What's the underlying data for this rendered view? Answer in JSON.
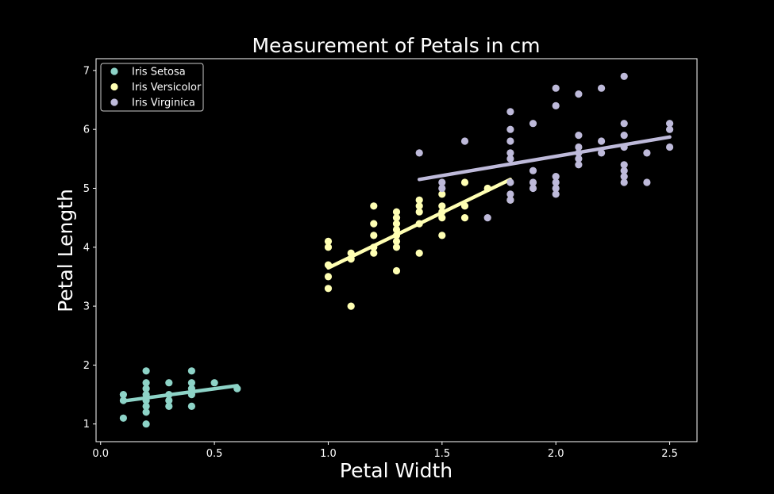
{
  "chart_data": {
    "type": "scatter",
    "title": "Measurement of Petals in cm",
    "xlabel": "Petal Width",
    "ylabel": "Petal Length",
    "xlim": [
      -0.02,
      2.62
    ],
    "ylim": [
      0.7,
      7.2
    ],
    "x_ticks": [
      "0.0",
      "0.5",
      "1.0",
      "1.5",
      "2.0",
      "2.5"
    ],
    "y_ticks": [
      "1",
      "2",
      "3",
      "4",
      "5",
      "6",
      "7"
    ],
    "grid": false,
    "legend_position": "top-left",
    "background": "#000000",
    "axes_color": "#ffffff",
    "series": [
      {
        "name": "Iris Setosa",
        "color": "#8dd3c7",
        "points": [
          [
            0.1,
            1.1
          ],
          [
            0.1,
            1.4
          ],
          [
            0.1,
            1.5
          ],
          [
            0.2,
            1.0
          ],
          [
            0.2,
            1.2
          ],
          [
            0.2,
            1.3
          ],
          [
            0.2,
            1.4
          ],
          [
            0.2,
            1.5
          ],
          [
            0.2,
            1.6
          ],
          [
            0.2,
            1.7
          ],
          [
            0.2,
            1.9
          ],
          [
            0.3,
            1.3
          ],
          [
            0.3,
            1.4
          ],
          [
            0.3,
            1.5
          ],
          [
            0.3,
            1.7
          ],
          [
            0.4,
            1.3
          ],
          [
            0.4,
            1.5
          ],
          [
            0.4,
            1.6
          ],
          [
            0.4,
            1.7
          ],
          [
            0.4,
            1.9
          ],
          [
            0.5,
            1.7
          ],
          [
            0.6,
            1.6
          ]
        ],
        "fit": [
          [
            0.1,
            1.39
          ],
          [
            0.6,
            1.65
          ]
        ]
      },
      {
        "name": "Iris Versicolor",
        "color": "#ffffb3",
        "points": [
          [
            1.0,
            3.3
          ],
          [
            1.0,
            3.5
          ],
          [
            1.0,
            3.7
          ],
          [
            1.0,
            4.0
          ],
          [
            1.0,
            4.1
          ],
          [
            1.1,
            3.0
          ],
          [
            1.1,
            3.8
          ],
          [
            1.1,
            3.9
          ],
          [
            1.2,
            3.9
          ],
          [
            1.2,
            4.0
          ],
          [
            1.2,
            4.2
          ],
          [
            1.2,
            4.4
          ],
          [
            1.2,
            4.7
          ],
          [
            1.3,
            3.6
          ],
          [
            1.3,
            4.0
          ],
          [
            1.3,
            4.1
          ],
          [
            1.3,
            4.2
          ],
          [
            1.3,
            4.3
          ],
          [
            1.3,
            4.4
          ],
          [
            1.3,
            4.5
          ],
          [
            1.3,
            4.6
          ],
          [
            1.4,
            3.9
          ],
          [
            1.4,
            4.4
          ],
          [
            1.4,
            4.6
          ],
          [
            1.4,
            4.7
          ],
          [
            1.4,
            4.8
          ],
          [
            1.5,
            4.2
          ],
          [
            1.5,
            4.5
          ],
          [
            1.5,
            4.6
          ],
          [
            1.5,
            4.7
          ],
          [
            1.5,
            4.9
          ],
          [
            1.6,
            4.5
          ],
          [
            1.6,
            4.7
          ],
          [
            1.6,
            5.1
          ],
          [
            1.7,
            5.0
          ],
          [
            1.8,
            4.8
          ]
        ],
        "fit": [
          [
            1.0,
            3.65
          ],
          [
            1.8,
            5.15
          ]
        ]
      },
      {
        "name": "Iris Virginica",
        "color": "#bebada",
        "points": [
          [
            1.4,
            5.6
          ],
          [
            1.5,
            5.0
          ],
          [
            1.5,
            5.1
          ],
          [
            1.6,
            5.8
          ],
          [
            1.7,
            4.5
          ],
          [
            1.8,
            4.8
          ],
          [
            1.8,
            4.9
          ],
          [
            1.8,
            5.1
          ],
          [
            1.8,
            5.5
          ],
          [
            1.8,
            5.6
          ],
          [
            1.8,
            5.8
          ],
          [
            1.8,
            6.0
          ],
          [
            1.8,
            6.3
          ],
          [
            1.9,
            5.0
          ],
          [
            1.9,
            5.1
          ],
          [
            1.9,
            5.3
          ],
          [
            1.9,
            6.1
          ],
          [
            2.0,
            4.9
          ],
          [
            2.0,
            5.0
          ],
          [
            2.0,
            5.1
          ],
          [
            2.0,
            5.2
          ],
          [
            2.0,
            6.4
          ],
          [
            2.0,
            6.7
          ],
          [
            2.1,
            5.4
          ],
          [
            2.1,
            5.5
          ],
          [
            2.1,
            5.6
          ],
          [
            2.1,
            5.7
          ],
          [
            2.1,
            5.9
          ],
          [
            2.1,
            6.6
          ],
          [
            2.2,
            5.6
          ],
          [
            2.2,
            5.8
          ],
          [
            2.2,
            6.7
          ],
          [
            2.3,
            5.1
          ],
          [
            2.3,
            5.2
          ],
          [
            2.3,
            5.3
          ],
          [
            2.3,
            5.4
          ],
          [
            2.3,
            5.7
          ],
          [
            2.3,
            5.9
          ],
          [
            2.3,
            6.1
          ],
          [
            2.3,
            6.9
          ],
          [
            2.4,
            5.1
          ],
          [
            2.4,
            5.6
          ],
          [
            2.5,
            5.7
          ],
          [
            2.5,
            6.0
          ],
          [
            2.5,
            6.1
          ]
        ],
        "fit": [
          [
            1.4,
            5.15
          ],
          [
            2.5,
            5.87
          ]
        ]
      }
    ]
  }
}
